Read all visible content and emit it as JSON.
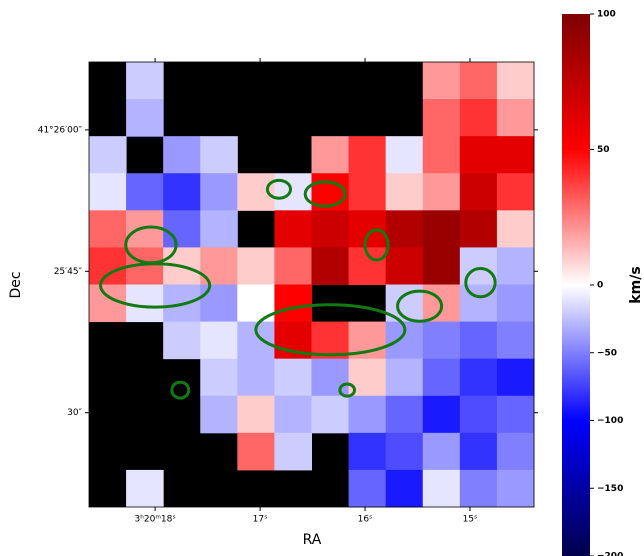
{
  "chart_data": {
    "type": "heatmap",
    "x_label": "RA",
    "y_label": "Dec",
    "colorbar_label": "km/s",
    "xlim": [
      18.63,
      14.39
    ],
    "ylim": [
      20.0,
      67.2
    ],
    "xticks": [
      {
        "value": 18,
        "label": "3ʰ20ᵐ18ˢ"
      },
      {
        "value": 17,
        "label": "17ˢ"
      },
      {
        "value": 16,
        "label": "16ˢ"
      },
      {
        "value": 15,
        "label": "15ˢ"
      }
    ],
    "yticks": [
      {
        "value": 60,
        "label": "41°26′00″"
      },
      {
        "value": 45,
        "label": "25′45″"
      },
      {
        "value": 30,
        "label": "30″"
      }
    ],
    "clim": [
      -200,
      100
    ],
    "vcenter": 0,
    "cticks": [
      100,
      50,
      0,
      {
        "value": -50,
        "label": "−50"
      },
      {
        "value": -100,
        "label": "−100"
      },
      {
        "value": -150,
        "label": "−150"
      },
      {
        "value": -200,
        "label": "−200"
      }
    ],
    "colormap": [
      "#00004c",
      "#0000ff",
      "#ffffff",
      "#ff0000",
      "#7f0000"
    ],
    "mask_color": "#000000",
    "values": [
      [
        null,
        -20,
        null,
        null,
        null,
        null,
        null,
        null,
        null,
        20,
        30,
        10
      ],
      [
        null,
        -30,
        null,
        null,
        null,
        null,
        null,
        null,
        null,
        30,
        40,
        20
      ],
      [
        -20,
        null,
        -40,
        -20,
        null,
        null,
        20,
        40,
        -10,
        30,
        60,
        60
      ],
      [
        -10,
        -60,
        -80,
        -40,
        10,
        -10,
        50,
        40,
        10,
        20,
        70,
        40
      ],
      [
        30,
        20,
        -60,
        -30,
        null,
        60,
        70,
        60,
        80,
        90,
        80,
        10
      ],
      [
        40,
        30,
        10,
        20,
        10,
        30,
        80,
        40,
        70,
        90,
        -20,
        -30
      ],
      [
        20,
        -10,
        -30,
        -40,
        0,
        50,
        null,
        null,
        -20,
        20,
        -30,
        -40
      ],
      [
        null,
        null,
        -20,
        -10,
        -30,
        60,
        40,
        20,
        -40,
        -50,
        -60,
        -50
      ],
      [
        null,
        null,
        null,
        -20,
        -30,
        -20,
        -40,
        10,
        -30,
        -60,
        -80,
        -90
      ],
      [
        null,
        null,
        null,
        -30,
        10,
        -30,
        -20,
        -40,
        -60,
        -90,
        -70,
        -60
      ],
      [
        null,
        null,
        null,
        null,
        30,
        -20,
        null,
        -80,
        -70,
        -40,
        -80,
        -50
      ],
      [
        null,
        -10,
        null,
        null,
        null,
        null,
        null,
        -60,
        -90,
        -10,
        -50,
        -40
      ]
    ],
    "contour_color": "#127a12",
    "contours": [
      {
        "cx": 16.33,
        "cy": 38.8,
        "rx": 0.71,
        "ry": 2.65
      },
      {
        "cx": 18.0,
        "cy": 43.5,
        "rx": 0.52,
        "ry": 2.3
      },
      {
        "cx": 18.04,
        "cy": 47.8,
        "rx": 0.24,
        "ry": 1.9
      },
      {
        "cx": 15.89,
        "cy": 47.8,
        "rx": 0.11,
        "ry": 1.6
      },
      {
        "cx": 16.38,
        "cy": 53.2,
        "rx": 0.19,
        "ry": 1.3
      },
      {
        "cx": 16.82,
        "cy": 53.7,
        "rx": 0.11,
        "ry": 0.95
      },
      {
        "cx": 14.9,
        "cy": 43.8,
        "rx": 0.14,
        "ry": 1.5
      },
      {
        "cx": 15.48,
        "cy": 41.3,
        "rx": 0.21,
        "ry": 1.6
      },
      {
        "cx": 16.17,
        "cy": 32.4,
        "rx": 0.07,
        "ry": 0.64
      },
      {
        "cx": 17.76,
        "cy": 32.4,
        "rx": 0.08,
        "ry": 0.85
      }
    ]
  }
}
